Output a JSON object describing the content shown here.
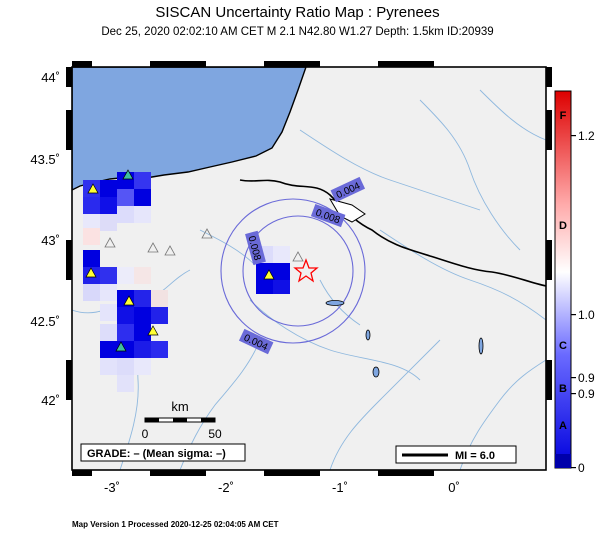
{
  "header": {
    "title": "SISCAN Uncertainty Ratio Map : Pyrenees",
    "subtitle": "Dec 25, 2020 02:02:10 AM CET   M 2.1   N42.80 W1.27   Depth: 1.5km   ID:20939"
  },
  "axes": {
    "lat_ticks": [
      "44˚",
      "43.5˚",
      "43˚",
      "42.5˚",
      "42˚"
    ],
    "lon_ticks": [
      "-3˚",
      "-2˚",
      "-1˚",
      "0˚"
    ]
  },
  "epicenter": {
    "lat": 42.8,
    "lon": -1.27
  },
  "contours": [
    "0.004",
    "0.008",
    "0.008",
    "0.004"
  ],
  "scalebar": {
    "unit": "km",
    "min_label": "0",
    "max_label": "50"
  },
  "grade_box": "GRADE: – (Mean sigma: –)",
  "mi_legend": "MI = 6.0",
  "colorbar": {
    "categories": [
      "F",
      "D",
      "C",
      "B",
      "A"
    ],
    "values": [
      "1.2",
      "1.0",
      "0.9",
      "0.9",
      "0"
    ]
  },
  "footer": "Map Version 1 Processed 2020-12-25 02:04:05 AM CET",
  "colors": {
    "sea": "#7fa6e0",
    "land": "#f0f0f0",
    "cell_dark": "#0000e0",
    "contour": "#6a6ad8",
    "star": "#ff0000"
  }
}
